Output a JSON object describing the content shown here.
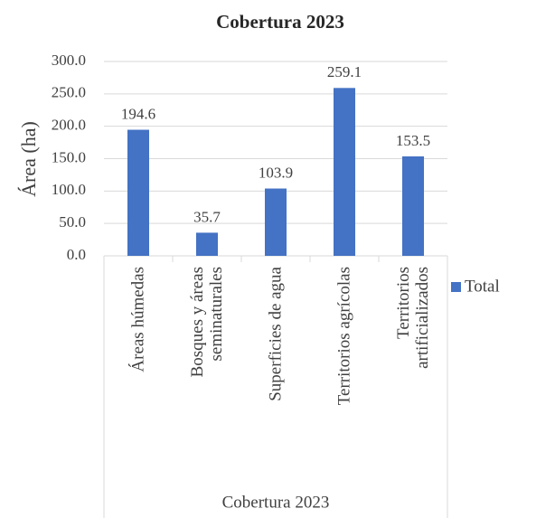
{
  "chart_data": {
    "type": "bar",
    "title": "Cobertura 2023",
    "y_label": "Área (ha)",
    "x_label": "Cobertura 2023",
    "categories": [
      "Áreas húmedas",
      "Bosques y áreas seminaturales",
      "Superficies de agua",
      "Territorios agrícolas",
      "Territorios artificializados"
    ],
    "series": [
      {
        "name": "Total",
        "color": "#4472c4",
        "values": [
          194.6,
          35.7,
          103.9,
          259.1,
          153.5
        ],
        "value_labels": [
          "194.6",
          "35.7",
          "103.9",
          "259.1",
          "153.5"
        ]
      }
    ],
    "ylim": [
      0,
      300
    ],
    "yticks": [
      {
        "value": 0,
        "label": "0.0"
      },
      {
        "value": 50,
        "label": "50.0"
      },
      {
        "value": 100,
        "label": "100.0"
      },
      {
        "value": 150,
        "label": "150.0"
      },
      {
        "value": 200,
        "label": "200.0"
      },
      {
        "value": 250,
        "label": "250.0"
      },
      {
        "value": 300,
        "label": "300.0"
      }
    ],
    "grid": true,
    "legend": "right"
  }
}
